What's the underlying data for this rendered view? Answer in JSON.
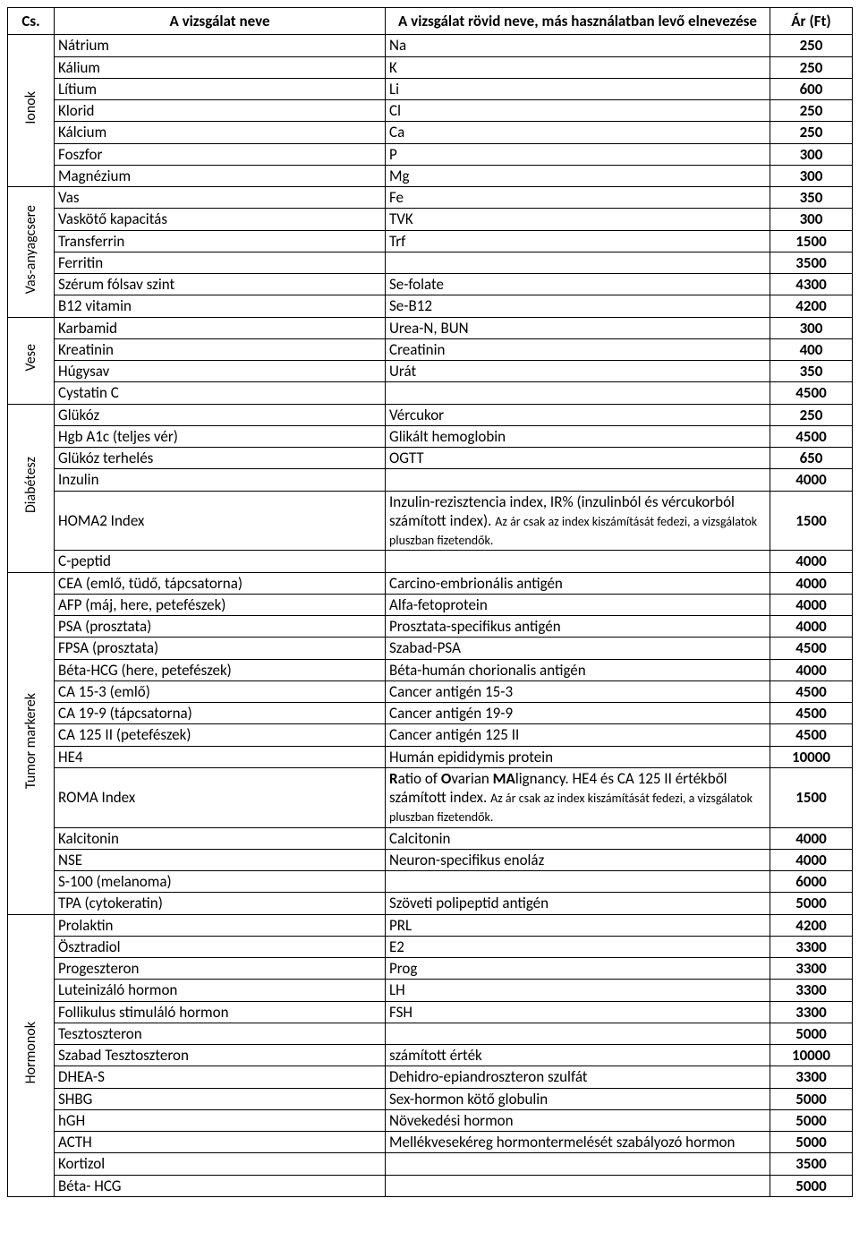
{
  "headers": {
    "cs": "Cs.",
    "name": "A vizsgálat neve",
    "alt": "A vizsgálat rövid neve, más használatban levő elnevezése",
    "price": "Ár (Ft)"
  },
  "groups": [
    {
      "label": "Ionok",
      "rows": [
        {
          "name": "Nátrium",
          "alt": "Na",
          "price": "250"
        },
        {
          "name": "Kálium",
          "alt": "K",
          "price": "250"
        },
        {
          "name": "Lítium",
          "alt": "Li",
          "price": "600"
        },
        {
          "name": "Klorid",
          "alt": "Cl",
          "price": "250"
        },
        {
          "name": "Kálcium",
          "alt": "Ca",
          "price": "250"
        },
        {
          "name": "Foszfor",
          "alt": "P",
          "price": "300"
        },
        {
          "name": "Magnézium",
          "alt": "Mg",
          "price": "300"
        }
      ]
    },
    {
      "label": "Vas-anyagcsere",
      "rows": [
        {
          "name": "Vas",
          "alt": "Fe",
          "price": "350"
        },
        {
          "name": "Vaskötő kapacitás",
          "alt": "TVK",
          "price": "300"
        },
        {
          "name": "Transferrin",
          "alt": "Trf",
          "price": "1500"
        },
        {
          "name": "Ferritin",
          "alt": "",
          "price": "3500"
        },
        {
          "name": "Szérum fólsav szint",
          "alt": "Se-folate",
          "price": "4300"
        },
        {
          "name": "B12 vitamin",
          "alt": "Se-B12",
          "price": "4200"
        }
      ]
    },
    {
      "label": "Vese",
      "rows": [
        {
          "name": "Karbamid",
          "alt": "Urea-N, BUN",
          "price": "300"
        },
        {
          "name": "Kreatinin",
          "alt": "Creatinin",
          "price": "400"
        },
        {
          "name": "Húgysav",
          "alt": "Urát",
          "price": "350"
        },
        {
          "name": "Cystatin C",
          "alt": "",
          "price": "4500"
        }
      ]
    },
    {
      "label": "Diabétesz",
      "rows": [
        {
          "name": "Glükóz",
          "alt": "Vércukor",
          "price": "250"
        },
        {
          "name": "Hgb A1c (teljes vér)",
          "alt": "Glikált hemoglobin",
          "price": "4500"
        },
        {
          "name": "Glükóz terhelés",
          "alt": "OGTT",
          "price": "650"
        },
        {
          "name": "Inzulin",
          "alt": "",
          "price": "4000"
        },
        {
          "name": "HOMA2 Index",
          "alt_html": "Inzulin-rezisztencia index, IR% (inzulinból és vércukorból számított index). <span class=\"small\">Az ár csak az index kiszámítását fedezi, a vizsgálatok pluszban fizetendők.</span>",
          "price": "1500",
          "wrap": true
        },
        {
          "name": "C-peptid",
          "alt": "",
          "price": "4000"
        }
      ]
    },
    {
      "label": "Tumor markerek",
      "rows": [
        {
          "name": "CEA (emlő, tüdő, tápcsatorna)",
          "alt": "Carcino-embrionális antigén",
          "price": "4000"
        },
        {
          "name": "AFP (máj, here, petefészek)",
          "alt": "Alfa-fetoprotein",
          "price": "4000"
        },
        {
          "name": "PSA (prosztata)",
          "alt": "Prosztata-specifikus antigén",
          "price": "4000"
        },
        {
          "name": "FPSA (prosztata)",
          "alt": "Szabad-PSA",
          "price": "4500"
        },
        {
          "name": "Béta-HCG (here, petefészek)",
          "alt": "Béta-humán chorionalis antigén",
          "price": "4000"
        },
        {
          "name": "CA 15-3 (emlő)",
          "alt": "Cancer antigén 15-3",
          "price": "4500"
        },
        {
          "name": "CA 19-9 (tápcsatorna)",
          "alt": "Cancer antigén 19-9",
          "price": "4500"
        },
        {
          "name": "CA 125 II (petefészek)",
          "alt": "Cancer antigén 125 II",
          "price": "4500"
        },
        {
          "name": "HE4",
          "alt": "Humán epididymis protein",
          "price": "10000"
        },
        {
          "name": "ROMA Index",
          "alt_html": "<b>R</b>atio of <b>O</b>varian <b>MA</b>lignancy. HE4 és CA 125 II értékből számított index. <span class=\"small\">Az ár csak az index kiszámítását fedezi, a vizsgálatok pluszban fizetendők.</span>",
          "price": "1500",
          "wrap": true
        },
        {
          "name": "Kalcitonin",
          "alt": "Calcitonin",
          "price": "4000"
        },
        {
          "name": "NSE",
          "alt": "Neuron-specifikus enoláz",
          "price": "4000"
        },
        {
          "name": "S-100 (melanoma)",
          "alt": "",
          "price": "6000"
        },
        {
          "name": "TPA (cytokeratin)",
          "alt": "Szöveti polipeptid antigén",
          "price": "5000"
        }
      ]
    },
    {
      "label": "Hormonok",
      "rows": [
        {
          "name": "Prolaktin",
          "alt": "PRL",
          "price": "4200"
        },
        {
          "name": "Ösztradiol",
          "alt": "E2",
          "price": "3300"
        },
        {
          "name": "Progeszteron",
          "alt": "Prog",
          "price": "3300"
        },
        {
          "name": "Luteinizáló hormon",
          "alt": "LH",
          "price": "3300"
        },
        {
          "name": "Follikulus stimuláló hormon",
          "alt": "FSH",
          "price": "3300"
        },
        {
          "name": "Tesztoszteron",
          "alt": "",
          "price": "5000"
        },
        {
          "name": "Szabad Tesztoszteron",
          "alt": "számított érték",
          "price": "10000"
        },
        {
          "name": "DHEA-S",
          "alt": "Dehidro-epiandroszteron szulfát",
          "price": "3300"
        },
        {
          "name": "SHBG",
          "alt": "Sex-hormon kötő globulin",
          "price": "5000"
        },
        {
          "name": "hGH",
          "alt": "Növekedési hormon",
          "price": "5000"
        },
        {
          "name": "ACTH",
          "alt": "Mellékvesekéreg hormontermelését szabályozó hormon",
          "price": "5000"
        },
        {
          "name": "Kortizol",
          "alt": "",
          "price": "3500"
        },
        {
          "name": "Béta- HCG",
          "alt": "",
          "price": "5000"
        }
      ]
    }
  ]
}
